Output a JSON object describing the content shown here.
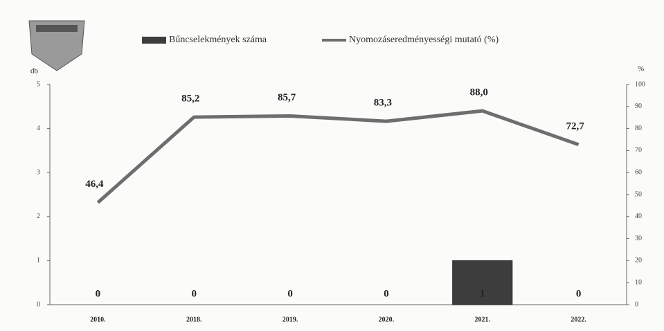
{
  "chart_data": {
    "type": "bar-line",
    "categories": [
      "2010.",
      "2018.",
      "2019.",
      "2020.",
      "2021.",
      "2022."
    ],
    "series": [
      {
        "name": "Bűncselekmények száma",
        "type": "bar",
        "color": "#3d3d3d",
        "values": [
          0,
          0,
          0,
          0,
          1,
          0
        ]
      },
      {
        "name": "Nyomozáseredményességi mutató (%)",
        "type": "line",
        "axis": "y2",
        "color": "#6e6e6e",
        "values": [
          46.4,
          85.2,
          85.7,
          83.3,
          88.0,
          72.7
        ],
        "value_labels": [
          "46,4",
          "85,2",
          "85,7",
          "83,3",
          "88,0",
          "72,7"
        ]
      }
    ],
    "y_label": "db",
    "y2_label": "%",
    "ylim": [
      0,
      5
    ],
    "yticks": [
      0,
      1,
      2,
      3,
      4,
      5
    ],
    "y2lim": [
      0,
      100
    ],
    "y2ticks": [
      0,
      10,
      20,
      30,
      40,
      50,
      60,
      70,
      80,
      90,
      100
    ]
  }
}
